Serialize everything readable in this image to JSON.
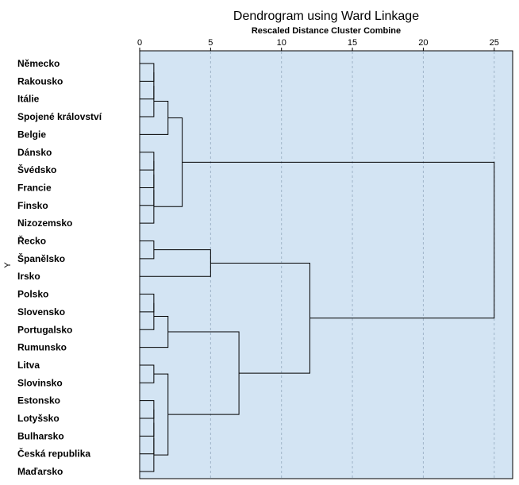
{
  "chart_data": {
    "type": "dendrogram",
    "title": "Dendrogram using Ward Linkage",
    "subtitle": "Rescaled Distance Cluster Combine",
    "ylabel": "Y",
    "xlim": [
      0,
      26.3
    ],
    "xticks": [
      0,
      5,
      10,
      15,
      20,
      25
    ],
    "grid": true,
    "leaves": [
      "Německo",
      "Rakousko",
      "Itálie",
      "Spojené království",
      "Belgie",
      "Dánsko",
      "Švédsko",
      "Francie",
      "Finsko",
      "Nizozemsko",
      "Řecko",
      "Španělsko",
      "Irsko",
      "Polsko",
      "Slovensko",
      "Portugalsko",
      "Rumunsko",
      "Litva",
      "Slovinsko",
      "Estonsko",
      "Lotyšsko",
      "Bulharsko",
      "Česká republika",
      "Maďarsko"
    ],
    "merges": [
      {
        "id": "c1",
        "children": [
          0,
          1
        ],
        "distance": 1.0
      },
      {
        "id": "c2",
        "children": [
          "c1",
          2
        ],
        "distance": 1.0
      },
      {
        "id": "c3",
        "children": [
          "c2",
          3
        ],
        "distance": 1.0
      },
      {
        "id": "c4",
        "children": [
          5,
          6
        ],
        "distance": 1.0
      },
      {
        "id": "c5",
        "children": [
          "c4",
          7
        ],
        "distance": 1.0
      },
      {
        "id": "c6",
        "children": [
          "c5",
          8
        ],
        "distance": 1.0
      },
      {
        "id": "c7",
        "children": [
          "c6",
          9
        ],
        "distance": 1.0
      },
      {
        "id": "c8",
        "children": [
          "c3",
          4
        ],
        "distance": 2.0
      },
      {
        "id": "c9",
        "children": [
          "c8",
          "c7"
        ],
        "distance": 3.0
      },
      {
        "id": "c10",
        "children": [
          10,
          11
        ],
        "distance": 1.0
      },
      {
        "id": "c11",
        "children": [
          "c10",
          12
        ],
        "distance": 5.0
      },
      {
        "id": "c12",
        "children": [
          13,
          14
        ],
        "distance": 1.0
      },
      {
        "id": "c13",
        "children": [
          "c12",
          15
        ],
        "distance": 1.0
      },
      {
        "id": "c14",
        "children": [
          "c13",
          16
        ],
        "distance": 2.0
      },
      {
        "id": "c15",
        "children": [
          17,
          18
        ],
        "distance": 1.0
      },
      {
        "id": "c16",
        "children": [
          19,
          20
        ],
        "distance": 1.0
      },
      {
        "id": "c17",
        "children": [
          "c16",
          21
        ],
        "distance": 1.0
      },
      {
        "id": "c18",
        "children": [
          "c17",
          22
        ],
        "distance": 1.0
      },
      {
        "id": "c19",
        "children": [
          "c18",
          23
        ],
        "distance": 1.0
      },
      {
        "id": "c20",
        "children": [
          "c15",
          "c19"
        ],
        "distance": 2.0
      },
      {
        "id": "c21",
        "children": [
          "c14",
          "c20"
        ],
        "distance": 7.0
      },
      {
        "id": "c22",
        "children": [
          "c11",
          "c21"
        ],
        "distance": 12.0
      },
      {
        "id": "c23",
        "children": [
          "c9",
          "c22"
        ],
        "distance": 25.0
      }
    ]
  }
}
